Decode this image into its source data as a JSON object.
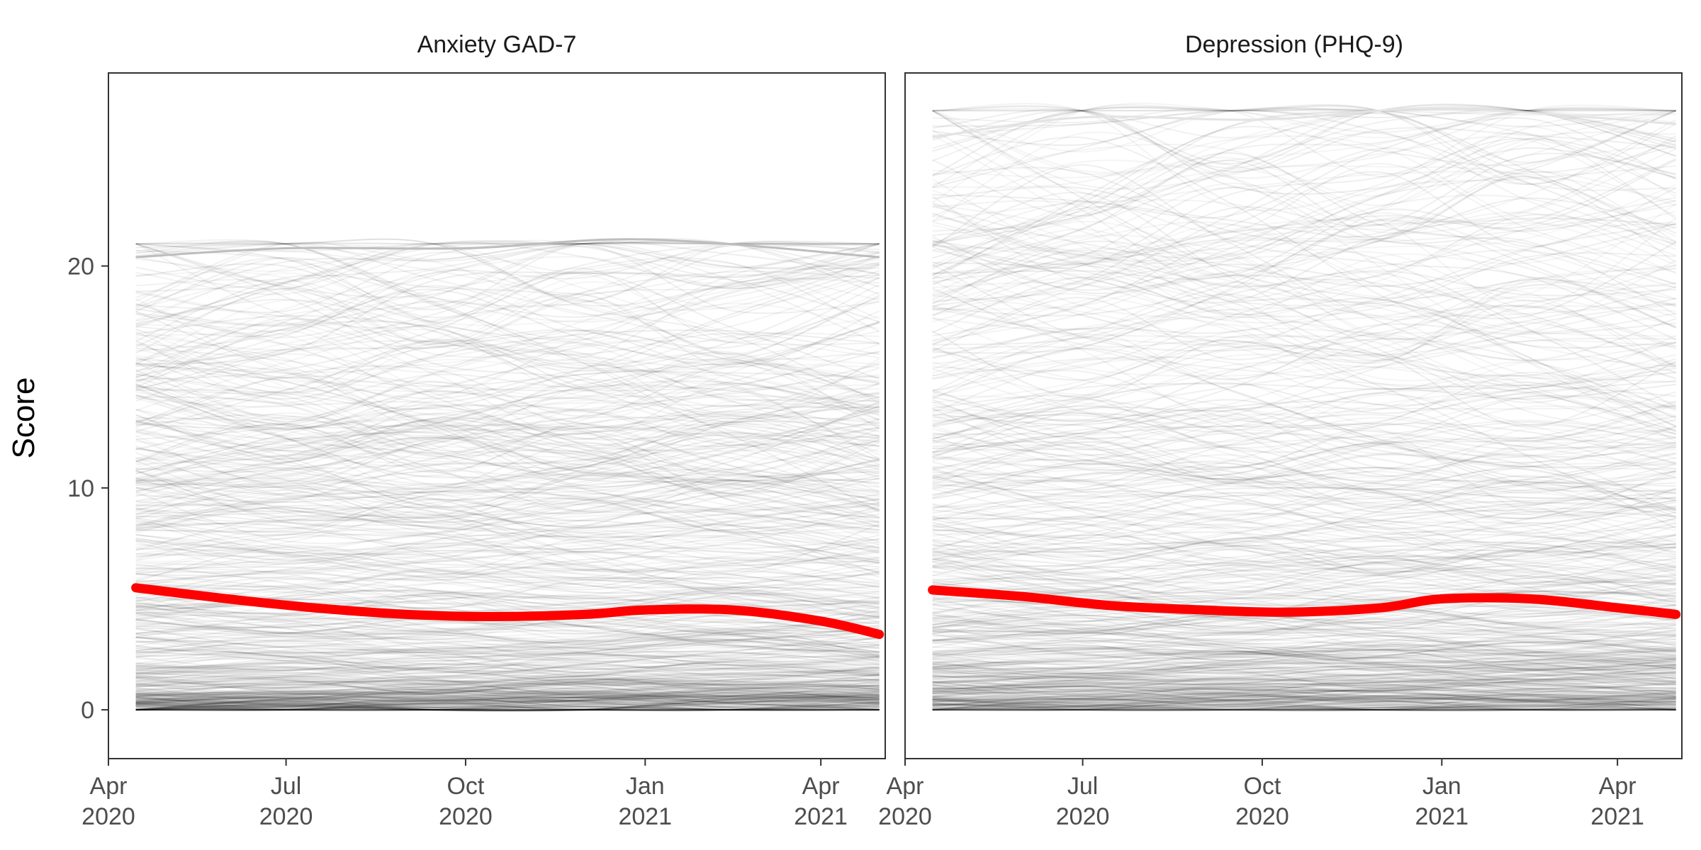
{
  "chart_data": [
    {
      "type": "line",
      "title": "Anxiety GAD-7",
      "ylabel": "Score",
      "xlabel": "",
      "x_start": "2020-04-15",
      "x_end": "2021-05-01",
      "xlim": [
        "2020-04-01",
        "2021-05-04"
      ],
      "ylim": [
        -2.2,
        28.7
      ],
      "yticks": [
        0,
        10,
        20
      ],
      "xticks": [
        {
          "date": "2020-04-01",
          "line1": "Apr",
          "line2": "2020"
        },
        {
          "date": "2020-07-01",
          "line1": "Jul",
          "line2": "2020"
        },
        {
          "date": "2020-10-01",
          "line1": "Oct",
          "line2": "2020"
        },
        {
          "date": "2021-01-01",
          "line1": "Jan",
          "line2": "2021"
        },
        {
          "date": "2021-04-01",
          "line1": "Apr",
          "line2": "2021"
        }
      ],
      "individual_trajectories": {
        "count": 600,
        "color": "#000000",
        "score_min": 0,
        "score_max": 21
      },
      "series": [
        {
          "color": "#ff0000",
          "x": [
            "2020-04-15",
            "2020-06-01",
            "2020-07-15",
            "2020-09-01",
            "2020-10-15",
            "2020-12-01",
            "2021-01-01",
            "2021-02-15",
            "2021-04-01",
            "2021-05-01"
          ],
          "values": [
            5.5,
            5.0,
            4.6,
            4.3,
            4.2,
            4.3,
            4.5,
            4.5,
            4.0,
            3.4
          ]
        }
      ],
      "upper_trajectory": {
        "color": "#bdbdbd",
        "x": [
          "2020-04-15",
          "2020-07-01",
          "2020-10-01",
          "2021-01-01",
          "2021-05-01"
        ],
        "values": [
          20.4,
          20.8,
          20.8,
          21.2,
          20.4
        ]
      }
    },
    {
      "type": "line",
      "title": "Depression (PHQ-9)",
      "ylabel": "",
      "xlabel": "",
      "x_start": "2020-04-15",
      "x_end": "2021-05-01",
      "xlim": [
        "2020-04-01",
        "2021-05-04"
      ],
      "ylim": [
        -2.2,
        28.7
      ],
      "yticks": [
        0,
        10,
        20
      ],
      "xticks": [
        {
          "date": "2020-04-01",
          "line1": "Apr",
          "line2": "2020"
        },
        {
          "date": "2020-07-01",
          "line1": "Jul",
          "line2": "2020"
        },
        {
          "date": "2020-10-01",
          "line1": "Oct",
          "line2": "2020"
        },
        {
          "date": "2021-01-01",
          "line1": "Jan",
          "line2": "2021"
        },
        {
          "date": "2021-04-01",
          "line1": "Apr",
          "line2": "2021"
        }
      ],
      "individual_trajectories": {
        "count": 600,
        "color": "#000000",
        "score_min": 0,
        "score_max": 27
      },
      "series": [
        {
          "color": "#ff0000",
          "x": [
            "2020-04-15",
            "2020-06-01",
            "2020-07-15",
            "2020-09-01",
            "2020-10-15",
            "2020-12-01",
            "2021-01-01",
            "2021-02-15",
            "2021-04-01",
            "2021-05-01"
          ],
          "values": [
            5.4,
            5.1,
            4.7,
            4.5,
            4.4,
            4.6,
            5.0,
            5.0,
            4.6,
            4.3
          ]
        }
      ],
      "upper_trajectory": {
        "color": "#e3e3e3",
        "x": [
          "2020-04-15",
          "2020-07-01",
          "2020-10-01",
          "2021-01-01",
          "2021-05-01"
        ],
        "values": [
          25.8,
          26.7,
          26.6,
          27.1,
          26.4
        ]
      }
    }
  ]
}
